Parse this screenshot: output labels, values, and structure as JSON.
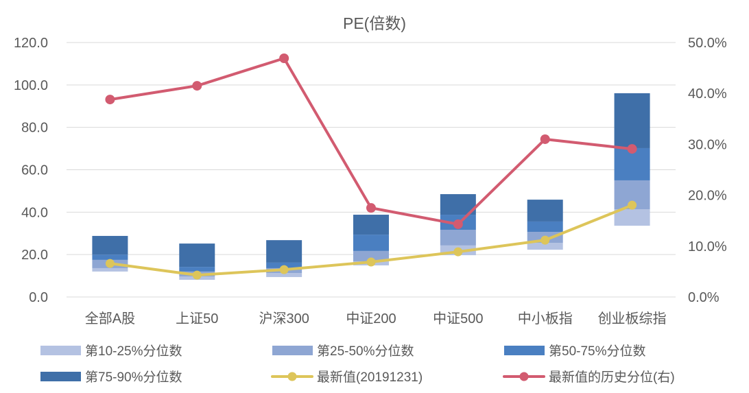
{
  "chart_data": {
    "type": "bar",
    "title": "PE(倍数)",
    "categories": [
      "全部A股",
      "上证50",
      "沪深300",
      "中证200",
      "中证500",
      "中小板指",
      "创业板综指"
    ],
    "y_left": {
      "min": 0,
      "max": 120,
      "ticks": [
        0,
        20,
        40,
        60,
        80,
        100,
        120
      ],
      "tick_labels": [
        "0.0",
        "20.0",
        "40.0",
        "60.0",
        "80.0",
        "100.0",
        "120.0"
      ]
    },
    "y_right": {
      "min": 0,
      "max": 50,
      "ticks": [
        0,
        10,
        20,
        30,
        40,
        50
      ],
      "tick_labels": [
        "0.0%",
        "10.0%",
        "20.0%",
        "30.0%",
        "40.0%",
        "50.0%"
      ]
    },
    "grid": true,
    "legend": "bottom",
    "series": [
      {
        "name": "第10-25%分位数",
        "type": "bar",
        "axis": "left",
        "color": "#b4c2e2",
        "ranges": [
          [
            12.0,
            13.6
          ],
          [
            8.1,
            9.7
          ],
          [
            9.4,
            11.3
          ],
          [
            14.9,
            16.8
          ],
          [
            19.7,
            24.3
          ],
          [
            22.3,
            25.5
          ],
          [
            33.6,
            41.4
          ]
        ]
      },
      {
        "name": "第25-50%分位数",
        "type": "bar",
        "axis": "left",
        "color": "#8ea6d3",
        "ranges": [
          [
            13.6,
            17.5
          ],
          [
            9.7,
            12.0
          ],
          [
            11.3,
            13.6
          ],
          [
            16.8,
            21.7
          ],
          [
            24.3,
            31.7
          ],
          [
            25.5,
            30.7
          ],
          [
            41.4,
            55.0
          ]
        ]
      },
      {
        "name": "第50-75%分位数",
        "type": "bar",
        "axis": "left",
        "color": "#4a7fc1",
        "ranges": [
          [
            17.5,
            20.0
          ],
          [
            12.0,
            14.2
          ],
          [
            13.6,
            16.2
          ],
          [
            21.7,
            29.4
          ],
          [
            31.7,
            38.8
          ],
          [
            30.7,
            35.6
          ],
          [
            55.0,
            70.2
          ]
        ]
      },
      {
        "name": "第75-90%分位数",
        "type": "bar",
        "axis": "left",
        "color": "#3f6fa8",
        "ranges": [
          [
            20.0,
            28.8
          ],
          [
            14.2,
            25.2
          ],
          [
            16.2,
            26.8
          ],
          [
            29.4,
            38.8
          ],
          [
            38.8,
            48.5
          ],
          [
            35.6,
            45.9
          ],
          [
            70.2,
            96.1
          ]
        ]
      },
      {
        "name": "最新值(20191231)",
        "type": "line",
        "axis": "left",
        "color": "#ddc55a",
        "values": [
          15.8,
          10.3,
          12.9,
          16.5,
          21.3,
          26.8,
          43.3
        ]
      },
      {
        "name": "最新值的历史分位(右)",
        "type": "line",
        "axis": "right",
        "color": "#d25b70",
        "values": [
          38.8,
          41.5,
          46.9,
          17.5,
          14.3,
          31.0,
          29.1
        ]
      }
    ]
  }
}
